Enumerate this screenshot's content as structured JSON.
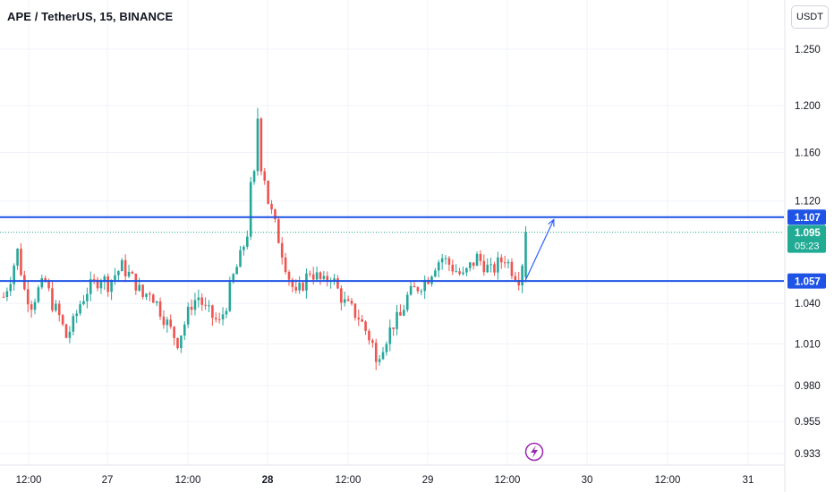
{
  "header": {
    "symbol": "APE",
    "pair_separator": " / ",
    "quote": "TetherUS",
    "interval": "15",
    "exchange": "BINANCE"
  },
  "currency_button": {
    "label": "USDT"
  },
  "price_axis": {
    "ticks": [
      "1.250",
      "1.200",
      "1.160",
      "1.120",
      "1.040",
      "1.010",
      "0.980",
      "0.955",
      "0.933"
    ]
  },
  "time_axis": {
    "ticks": [
      "12:00",
      "27",
      "12:00",
      "28",
      "12:00",
      "29",
      "12:00",
      "30",
      "12:00",
      "31"
    ],
    "bold_ticks": [
      "28"
    ]
  },
  "colors": {
    "up": "#26a69a",
    "down": "#ef5350",
    "level_line": "#1e53e5",
    "current_price": "#22ab94",
    "grid": "#f0f3fa",
    "arrow": "#2962ff",
    "lightning": "#9c27b0"
  },
  "tags": {
    "resistance": "1.107",
    "current": "1.095",
    "countdown": "05:23",
    "support": "1.057"
  },
  "icons": {
    "event_marker": "lightning-icon",
    "projection": "arrow-up-right-icon"
  },
  "chart_data": {
    "type": "candlestick",
    "title": "APE / TetherUS, 15, BINANCE",
    "y_scale": "log",
    "ylim": [
      0.925,
      1.265
    ],
    "grid": true,
    "horizontal_levels": [
      {
        "value": 1.107
      },
      {
        "value": 1.057
      }
    ],
    "current_price": 1.095,
    "path": [
      [
        0,
        1.045
      ],
      [
        2,
        1.06
      ],
      [
        4,
        1.08
      ],
      [
        6,
        1.05
      ],
      [
        8,
        1.04
      ],
      [
        10,
        1.05
      ],
      [
        12,
        1.056
      ],
      [
        14,
        1.04
      ],
      [
        16,
        1.03
      ],
      [
        18,
        1.015
      ],
      [
        20,
        1.025
      ],
      [
        22,
        1.04
      ],
      [
        24,
        1.05
      ],
      [
        26,
        1.055
      ],
      [
        28,
        1.06
      ],
      [
        30,
        1.055
      ],
      [
        32,
        1.062
      ],
      [
        34,
        1.068
      ],
      [
        36,
        1.062
      ],
      [
        38,
        1.055
      ],
      [
        40,
        1.045
      ],
      [
        42,
        1.05
      ],
      [
        44,
        1.04
      ],
      [
        46,
        1.03
      ],
      [
        48,
        1.02
      ],
      [
        50,
        1.012
      ],
      [
        52,
        1.025
      ],
      [
        54,
        1.04
      ],
      [
        56,
        1.045
      ],
      [
        58,
        1.035
      ],
      [
        60,
        1.03
      ],
      [
        62,
        1.025
      ],
      [
        64,
        1.04
      ],
      [
        66,
        1.06
      ],
      [
        68,
        1.075
      ],
      [
        70,
        1.095
      ],
      [
        71,
        1.13
      ],
      [
        72,
        1.14
      ],
      [
        73,
        1.19
      ],
      [
        74,
        1.15
      ],
      [
        75,
        1.14
      ],
      [
        76,
        1.12
      ],
      [
        78,
        1.1
      ],
      [
        80,
        1.08
      ],
      [
        82,
        1.06
      ],
      [
        84,
        1.045
      ],
      [
        86,
        1.055
      ],
      [
        88,
        1.065
      ],
      [
        90,
        1.06
      ],
      [
        92,
        1.055
      ],
      [
        94,
        1.062
      ],
      [
        96,
        1.05
      ],
      [
        98,
        1.04
      ],
      [
        100,
        1.035
      ],
      [
        102,
        1.03
      ],
      [
        104,
        1.02
      ],
      [
        106,
        1.01
      ],
      [
        107,
        0.995
      ],
      [
        108,
        1.005
      ],
      [
        110,
        1.015
      ],
      [
        112,
        1.025
      ],
      [
        114,
        1.03
      ],
      [
        116,
        1.045
      ],
      [
        118,
        1.05
      ],
      [
        120,
        1.055
      ],
      [
        122,
        1.06
      ],
      [
        124,
        1.07
      ],
      [
        126,
        1.075
      ],
      [
        128,
        1.07
      ],
      [
        130,
        1.065
      ],
      [
        132,
        1.06
      ],
      [
        134,
        1.068
      ],
      [
        136,
        1.075
      ],
      [
        138,
        1.07
      ],
      [
        140,
        1.064
      ],
      [
        142,
        1.07
      ],
      [
        144,
        1.075
      ],
      [
        146,
        1.066
      ],
      [
        148,
        1.06
      ],
      [
        149,
        1.072
      ],
      [
        150,
        1.095
      ]
    ],
    "projection_arrow": {
      "from": [
        150,
        1.058
      ],
      "to": [
        156,
        1.105
      ]
    }
  }
}
